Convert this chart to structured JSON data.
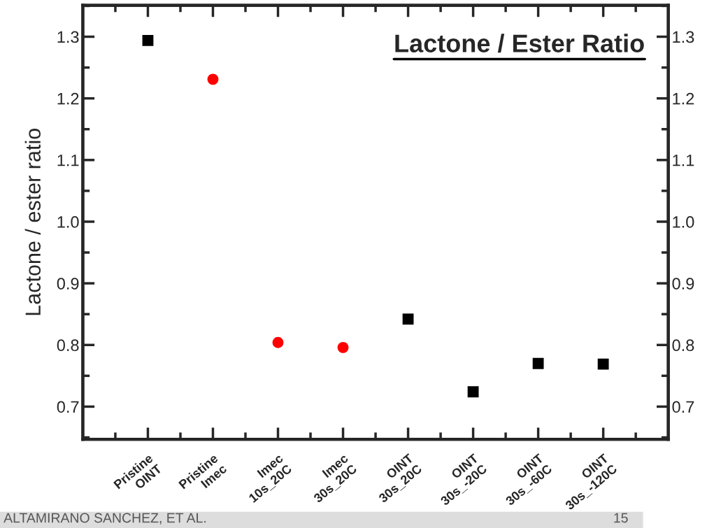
{
  "chart_data": {
    "type": "scatter",
    "title": "Lactone / Ester Ratio",
    "ylabel": "Lactone / ester ratio",
    "categories": [
      "Pristine\nOINT",
      "Pristine\nImec",
      "Imec\n10s_20C",
      "Imec\n30s_20C",
      "OINT\n30s_20C",
      "OINT\n30s_-20C",
      "OINT\n30s_-60C",
      "OINT\n30s_-120C"
    ],
    "series": [
      {
        "color": "#000000",
        "marker": "square",
        "values": [
          1.294,
          null,
          null,
          null,
          0.842,
          0.724,
          0.77,
          0.769
        ]
      },
      {
        "color": "#ff0000",
        "marker": "circle",
        "values": [
          null,
          1.231,
          0.804,
          0.796,
          null,
          null,
          null,
          null
        ]
      }
    ],
    "ylim": [
      0.647,
      1.351
    ],
    "yticks": [
      0.7,
      0.8,
      0.9,
      {
        "value": 1,
        "label": "1.0"
      },
      1.1,
      1.2,
      1.3
    ],
    "y2lim": [
      0.647,
      1.351
    ],
    "y2ticks": [
      0.7,
      0.8,
      0.9,
      {
        "value": 1,
        "label": "1.0"
      },
      1.1,
      1.2,
      1.3
    ],
    "grid": false,
    "legend": false,
    "annotations": [
      "ALTAMIRANO SANCHEZ, ET AL.",
      "15"
    ]
  }
}
